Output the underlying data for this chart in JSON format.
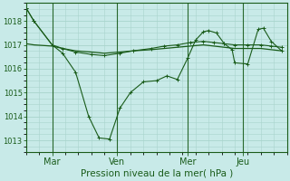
{
  "bg_color": "#c8eae8",
  "grid_color": "#a8d4cc",
  "line_color": "#1a5c1a",
  "xlabel": "Pression niveau de la mer( hPa )",
  "ylim": [
    1012.5,
    1018.7
  ],
  "yticks": [
    1013,
    1014,
    1015,
    1016,
    1017,
    1018
  ],
  "xtick_labels": [
    "Mar",
    "Ven",
    "Mer",
    "Jeu"
  ],
  "xtick_pos": [
    1.0,
    3.5,
    6.2,
    8.3
  ],
  "vline_pos": [
    1.0,
    3.5,
    6.2,
    8.3
  ],
  "xlim": [
    0.0,
    10.0
  ],
  "series1_x": [
    0.0,
    0.3,
    1.0,
    1.4,
    1.9,
    2.5,
    3.0,
    3.6,
    4.1,
    4.8,
    5.3,
    5.8,
    6.3,
    6.8,
    7.2,
    7.6,
    8.0,
    8.5,
    9.0,
    9.4,
    9.8
  ],
  "series1_y": [
    1018.55,
    1018.0,
    1017.0,
    1016.85,
    1016.7,
    1016.6,
    1016.55,
    1016.65,
    1016.75,
    1016.85,
    1016.95,
    1017.0,
    1017.1,
    1017.15,
    1017.1,
    1017.05,
    1017.0,
    1017.0,
    1017.0,
    1016.95,
    1016.9
  ],
  "series2_x": [
    0.0,
    0.3,
    1.0,
    1.4,
    1.9,
    2.5,
    3.0,
    3.6,
    4.1,
    4.8,
    5.3,
    5.8,
    6.3,
    6.8,
    7.2,
    7.6,
    8.0,
    8.5,
    9.0,
    9.4,
    9.8
  ],
  "series2_y": [
    1017.05,
    1017.0,
    1016.95,
    1016.85,
    1016.75,
    1016.7,
    1016.65,
    1016.7,
    1016.75,
    1016.8,
    1016.85,
    1016.9,
    1016.95,
    1017.0,
    1016.95,
    1016.9,
    1016.85,
    1016.85,
    1016.85,
    1016.8,
    1016.75
  ],
  "series3_x": [
    0.0,
    0.3,
    1.0,
    1.4,
    1.9,
    2.4,
    2.8,
    3.2,
    3.6,
    4.0,
    4.5,
    5.0,
    5.4,
    5.8,
    6.2,
    6.5,
    6.8,
    7.0,
    7.3,
    7.6,
    7.9,
    8.0,
    8.5,
    8.9,
    9.1,
    9.4,
    9.8
  ],
  "series3_y": [
    1018.55,
    1018.0,
    1017.0,
    1016.65,
    1015.85,
    1014.0,
    1013.1,
    1013.05,
    1014.35,
    1015.0,
    1015.45,
    1015.5,
    1015.7,
    1015.55,
    1016.45,
    1017.2,
    1017.55,
    1017.6,
    1017.5,
    1017.05,
    1016.8,
    1016.25,
    1016.2,
    1017.65,
    1017.7,
    1017.15,
    1016.75
  ]
}
